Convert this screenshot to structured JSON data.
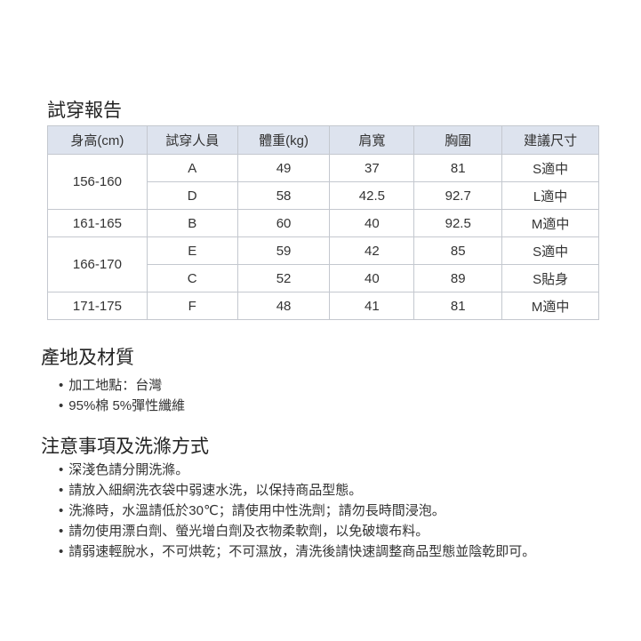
{
  "fitting_report": {
    "title": "試穿報告",
    "headers": [
      "身高(cm)",
      "試穿人員",
      "體重(kg)",
      "肩寬",
      "胸圍",
      "建議尺寸"
    ],
    "groups": [
      {
        "height": "156-160",
        "rows": [
          {
            "person": "A",
            "weight": "49",
            "shoulder": "37",
            "chest": "81",
            "size": "S適中"
          },
          {
            "person": "D",
            "weight": "58",
            "shoulder": "42.5",
            "chest": "92.7",
            "size": "L適中"
          }
        ]
      },
      {
        "height": "161-165",
        "rows": [
          {
            "person": "B",
            "weight": "60",
            "shoulder": "40",
            "chest": "92.5",
            "size": "M適中"
          }
        ]
      },
      {
        "height": "166-170",
        "rows": [
          {
            "person": "E",
            "weight": "59",
            "shoulder": "42",
            "chest": "85",
            "size": "S適中"
          },
          {
            "person": "C",
            "weight": "52",
            "shoulder": "40",
            "chest": "89",
            "size": "S貼身"
          }
        ]
      },
      {
        "height": "171-175",
        "rows": [
          {
            "person": "F",
            "weight": "48",
            "shoulder": "41",
            "chest": "81",
            "size": "M適中"
          }
        ]
      }
    ]
  },
  "origin": {
    "title": "產地及材質",
    "items": [
      "加工地點：台灣",
      "95%棉 5%彈性纖維"
    ]
  },
  "care": {
    "title": "注意事項及洗滌方式",
    "items": [
      "深淺色請分開洗滌。",
      "請放入細網洗衣袋中弱速水洗，以保持商品型態。",
      "洗滌時，水溫請低於30℃；請使用中性洗劑；請勿長時間浸泡。",
      "請勿使用漂白劑、螢光增白劑及衣物柔軟劑，以免破壞布料。",
      "請弱速輕脫水，不可烘乾；不可濕放，清洗後請快速調整商品型態並陰乾即可。"
    ]
  },
  "colors": {
    "header_bg": "#dde3ee",
    "border": "#c4c8cf"
  }
}
